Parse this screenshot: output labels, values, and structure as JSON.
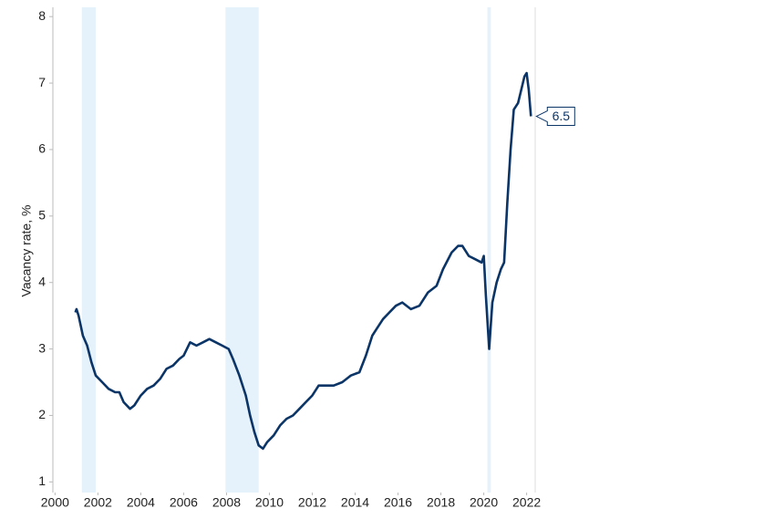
{
  "chart_data": {
    "type": "line",
    "y_label": "Vacancy rate, %",
    "x": [
      2000.95,
      2001.0,
      2001.1,
      2001.3,
      2001.5,
      2001.7,
      2001.9,
      2002.2,
      2002.5,
      2002.8,
      2003.0,
      2003.2,
      2003.5,
      2003.7,
      2004.0,
      2004.3,
      2004.6,
      2004.9,
      2005.2,
      2005.5,
      2005.8,
      2006.0,
      2006.3,
      2006.6,
      2006.9,
      2007.2,
      2007.5,
      2007.8,
      2008.1,
      2008.3,
      2008.6,
      2008.9,
      2009.1,
      2009.3,
      2009.5,
      2009.7,
      2009.9,
      2010.2,
      2010.5,
      2010.8,
      2011.1,
      2011.4,
      2011.7,
      2012.0,
      2012.3,
      2012.6,
      2013.0,
      2013.4,
      2013.8,
      2014.2,
      2014.5,
      2014.8,
      2015.0,
      2015.3,
      2015.6,
      2015.9,
      2016.2,
      2016.6,
      2017.0,
      2017.4,
      2017.8,
      2018.1,
      2018.5,
      2018.8,
      2019.0,
      2019.3,
      2019.6,
      2019.9,
      2020.0,
      2020.1,
      2020.25,
      2020.4,
      2020.6,
      2020.8,
      2020.95,
      2021.1,
      2021.25,
      2021.4,
      2021.6,
      2021.75,
      2021.9,
      2022.0,
      2022.1,
      2022.2
    ],
    "values": [
      3.55,
      3.6,
      3.5,
      3.2,
      3.05,
      2.8,
      2.6,
      2.5,
      2.4,
      2.35,
      2.35,
      2.2,
      2.1,
      2.15,
      2.3,
      2.4,
      2.45,
      2.55,
      2.7,
      2.75,
      2.85,
      2.9,
      3.1,
      3.05,
      3.1,
      3.15,
      3.1,
      3.05,
      3.0,
      2.85,
      2.6,
      2.3,
      2.0,
      1.75,
      1.55,
      1.5,
      1.6,
      1.7,
      1.85,
      1.95,
      2.0,
      2.1,
      2.2,
      2.3,
      2.45,
      2.45,
      2.45,
      2.5,
      2.6,
      2.65,
      2.9,
      3.2,
      3.3,
      3.45,
      3.55,
      3.65,
      3.7,
      3.6,
      3.65,
      3.85,
      3.95,
      4.2,
      4.45,
      4.55,
      4.55,
      4.4,
      4.35,
      4.3,
      4.4,
      3.8,
      3.0,
      3.7,
      4.0,
      4.2,
      4.3,
      5.2,
      6.0,
      6.6,
      6.7,
      6.9,
      7.1,
      7.15,
      6.9,
      6.5
    ],
    "color": "#0b3467",
    "shaded_periods": [
      [
        2001.25,
        2001.9
      ],
      [
        2007.95,
        2009.5
      ],
      [
        2020.17,
        2020.33
      ]
    ],
    "shade_color": "#e6f2fb",
    "xlim": [
      1999.9,
      2022.4
    ],
    "ylim": [
      0.84,
      8.14
    ],
    "xticks": [
      2000,
      2002,
      2004,
      2006,
      2008,
      2010,
      2012,
      2014,
      2016,
      2018,
      2020,
      2022
    ],
    "yticks": [
      1,
      2,
      3,
      4,
      5,
      6,
      7,
      8
    ],
    "grid": false
  }
}
